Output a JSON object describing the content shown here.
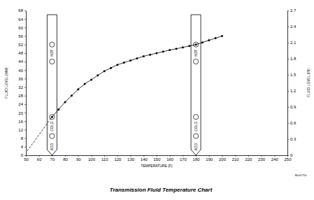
{
  "chart_data": {
    "type": "line",
    "title": "Transmission Fluid Temperature Chart",
    "x_label": "TEMPERATURE (F)",
    "y_label": "FLUID LEVEL (MM)",
    "y2_label": "FLUID LEVEL (IN)",
    "xlim": [
      50,
      250
    ],
    "xticks": [
      50,
      60,
      70,
      80,
      90,
      100,
      110,
      120,
      130,
      140,
      150,
      160,
      170,
      180,
      190,
      200,
      210,
      220,
      230,
      240,
      250
    ],
    "ylim": [
      0,
      68
    ],
    "yticks": [
      0,
      4,
      8,
      12,
      16,
      20,
      24,
      28,
      32,
      36,
      40,
      44,
      48,
      52,
      56,
      60,
      64,
      68
    ],
    "y2lim": [
      0,
      2.7
    ],
    "y2ticks": [
      0,
      0.3,
      0.6,
      0.9,
      1.2,
      1.5,
      1.8,
      2.1,
      2.4,
      2.7
    ],
    "grid": false,
    "color": "#000000",
    "series": [
      {
        "color": "#000000",
        "line_style": "solid",
        "marker": "circle",
        "x": [
          70,
          75,
          80,
          85,
          90,
          95,
          100,
          105,
          110,
          115,
          120,
          125,
          130,
          135,
          140,
          145,
          150,
          155,
          160,
          165,
          170,
          175,
          180,
          185,
          190,
          195,
          200
        ],
        "values": [
          18,
          21.5,
          25,
          28,
          31,
          33.5,
          35.5,
          37.5,
          39.5,
          41,
          42.5,
          43.5,
          44.5,
          45.5,
          46.5,
          47.2,
          48,
          48.7,
          49.4,
          50,
          50.7,
          51.3,
          52,
          53,
          54,
          55,
          56
        ]
      },
      {
        "color": "#000000",
        "line_style": "dashed",
        "marker": "none",
        "x": [
          51,
          70
        ],
        "values": [
          2,
          18
        ]
      }
    ],
    "dipsticks": [
      {
        "x": 70,
        "marks": [
          {
            "label": "HOT",
            "range": [
              44,
              52
            ]
          },
          {
            "label": "COLD",
            "range": [
              9,
              18
            ]
          },
          {
            "label": "ADD"
          }
        ]
      },
      {
        "x": 180,
        "marks": [
          {
            "label": "HOT",
            "range": [
              44,
              52
            ]
          },
          {
            "label": "COLD",
            "range": [
              9,
              18
            ]
          },
          {
            "label": "ADD"
          }
        ]
      }
    ],
    "annotations": [
      "80c6770c"
    ]
  }
}
